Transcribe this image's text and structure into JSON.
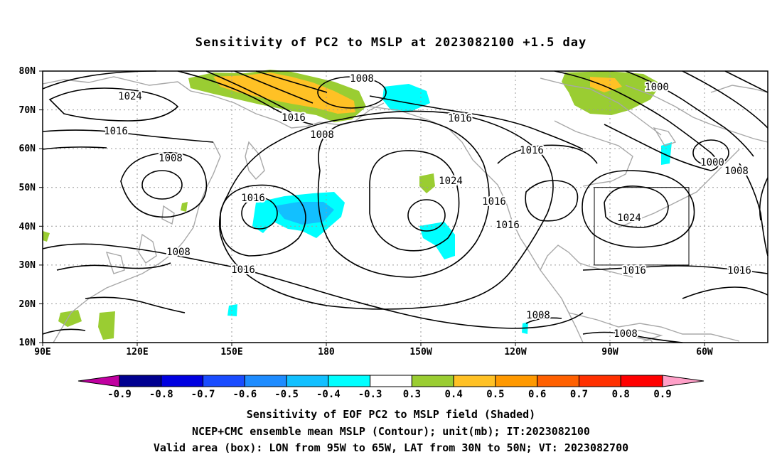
{
  "title": "Sensitivity of PC2 to MSLP at 2023082100 +1.5 day",
  "lat_labels": [
    "80N",
    "70N",
    "60N",
    "50N",
    "40N",
    "30N",
    "20N",
    "10N"
  ],
  "lon_labels": [
    "90E",
    "120E",
    "150E",
    "180",
    "150W",
    "120W",
    "90W",
    "60W"
  ],
  "contour_labels": [
    "1008",
    "1024",
    "1016",
    "1016",
    "1008",
    "1000",
    "1016",
    "1016",
    "1008",
    "1000",
    "1008",
    "1024",
    "1016",
    "1016",
    "1016",
    "1024",
    "1016",
    "1008",
    "1016",
    "1016",
    "1008",
    "1008"
  ],
  "colorbar": {
    "labels": [
      "-0.9",
      "-0.8",
      "-0.7",
      "-0.6",
      "-0.5",
      "-0.4",
      "-0.3",
      "0.3",
      "0.4",
      "0.5",
      "0.6",
      "0.7",
      "0.8",
      "0.9"
    ],
    "colors": [
      "#c000a0",
      "#000090",
      "#0000e0",
      "#1a4cff",
      "#1e8cff",
      "#12c0ff",
      "#00ffff",
      "#ffffff",
      "#9acd32",
      "#ffc125",
      "#ff9900",
      "#ff6000",
      "#ff3000",
      "#ff0000",
      "#ffa0c8"
    ]
  },
  "valid_box": {
    "lon_from": "95W",
    "lon_to": "65W",
    "lat_from": "30N",
    "lat_to": "50N"
  },
  "captions": {
    "line1": "Sensitivity of EOF PC2 to MSLP field (Shaded)",
    "line2": "NCEP+CMC ensemble mean MSLP (Contour); unit(mb); IT:2023082100",
    "line3": "Valid area (box): LON from 95W to 65W, LAT from 30N to 50N; VT: 2023082700"
  }
}
